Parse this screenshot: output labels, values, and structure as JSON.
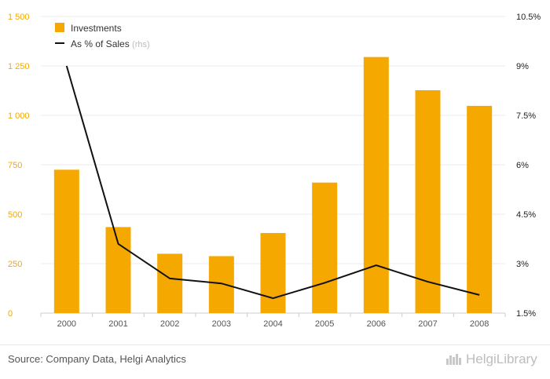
{
  "chart_data": {
    "type": "bar",
    "categories": [
      "2000",
      "2001",
      "2002",
      "2003",
      "2004",
      "2005",
      "2006",
      "2007",
      "2008"
    ],
    "series": [
      {
        "name": "Investments",
        "kind": "bar",
        "axis": "left",
        "color": "#f5a800",
        "values": [
          725,
          435,
          300,
          288,
          405,
          660,
          1295,
          1127,
          1048
        ]
      },
      {
        "name": "As % of Sales",
        "name_suffix": "(rhs)",
        "kind": "line",
        "axis": "right",
        "color": "#111111",
        "values": [
          9.0,
          3.6,
          2.55,
          2.4,
          1.95,
          2.42,
          2.95,
          2.45,
          2.05
        ]
      }
    ],
    "y_left": {
      "min": 0,
      "max": 1500,
      "ticks": [
        0,
        250,
        500,
        750,
        1000,
        1250,
        1500
      ],
      "tick_labels": [
        "0",
        "250",
        "500",
        "750",
        "1 000",
        "1 250",
        "1 500"
      ]
    },
    "y_right": {
      "min": 1.5,
      "max": 10.5,
      "ticks": [
        1.5,
        3,
        4.5,
        6,
        7.5,
        9,
        10.5
      ],
      "tick_labels": [
        "1.5%",
        "3%",
        "4.5%",
        "6%",
        "7.5%",
        "9%",
        "10.5%"
      ]
    },
    "grid": true,
    "legend_position": "top-left"
  },
  "footer": {
    "source": "Source: Company Data, Helgi Analytics",
    "logo": "HelgiLibrary",
    "logo_icon": "city-skyline-icon"
  }
}
